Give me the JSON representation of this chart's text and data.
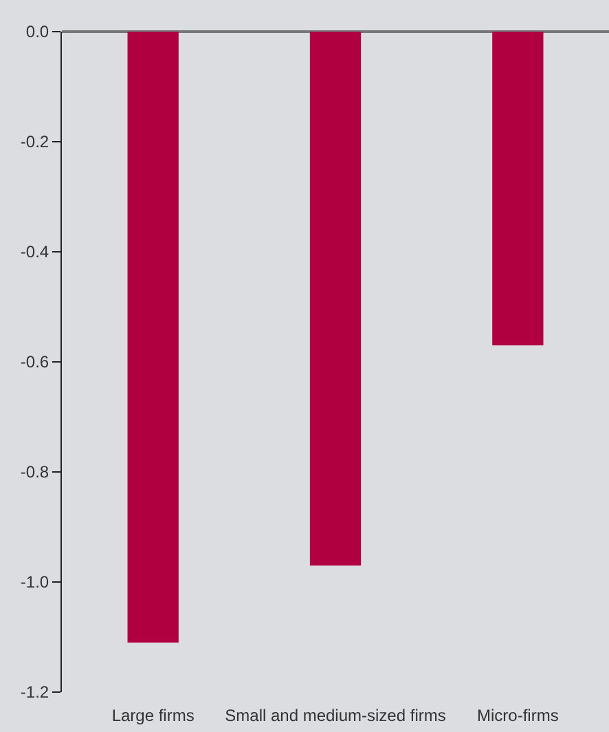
{
  "chart_data": {
    "type": "bar",
    "categories": [
      "Large firms",
      "Small and medium-sized firms",
      "Micro-firms"
    ],
    "values": [
      -1.11,
      -0.97,
      -0.57
    ],
    "color": "#b0003f",
    "ylim": [
      -1.2,
      0.0
    ],
    "yticks": [
      {
        "value": 0,
        "label": "0.0"
      },
      -0.2,
      -0.4,
      -0.6,
      -0.8,
      {
        "value": -1.0,
        "label": "-1.0"
      },
      -1.2
    ],
    "grid": false,
    "legend": false
  }
}
